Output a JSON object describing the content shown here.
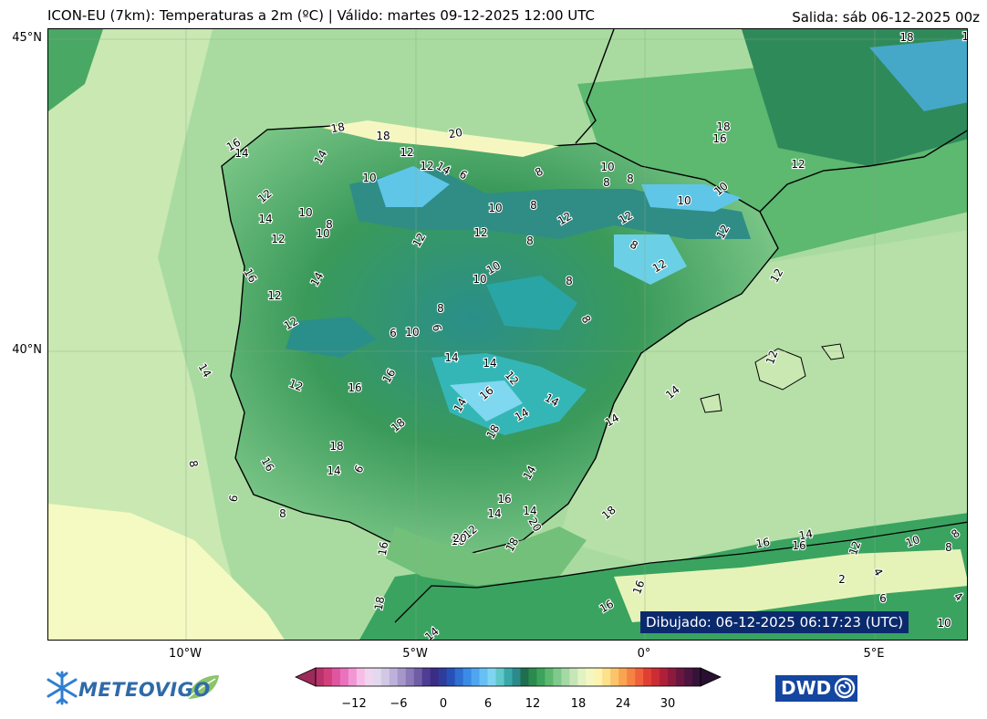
{
  "header": {
    "title": "ICON-EU (7km): Temperaturas a 2m (ºC) | Válido: martes 09-12-2025 12:00 UTC",
    "run": "Salida: sáb 06-12-2025 00z"
  },
  "map": {
    "latitude_labels": [
      "45°N",
      "40°N"
    ],
    "longitude_labels": [
      "10°W",
      "5°W",
      "0°",
      "5°E"
    ],
    "contour_labels": [
      "18",
      "18",
      "20",
      "16",
      "14",
      "14",
      "12",
      "14",
      "10",
      "16",
      "12",
      "12",
      "14",
      "14",
      "12",
      "16",
      "16",
      "18",
      "18",
      "16",
      "14",
      "6",
      "8",
      "6",
      "8",
      "10",
      "12",
      "12",
      "14",
      "6",
      "8",
      "10",
      "8",
      "8",
      "10",
      "10",
      "10",
      "8",
      "12",
      "12",
      "12",
      "10",
      "8",
      "12",
      "8",
      "12",
      "12",
      "8",
      "12",
      "10",
      "10",
      "8",
      "8",
      "8",
      "6",
      "10",
      "6",
      "14",
      "14",
      "12",
      "14",
      "16",
      "14",
      "14",
      "18",
      "14",
      "16",
      "14",
      "14",
      "12",
      "16",
      "18",
      "16",
      "20",
      "20",
      "18",
      "16",
      "16",
      "18",
      "14",
      "14",
      "14",
      "12",
      "12",
      "14",
      "16",
      "16",
      "14",
      "12",
      "10",
      "8",
      "8",
      "2",
      "4",
      "6",
      "4",
      "10",
      "18",
      "18",
      "16",
      "12"
    ],
    "stamp": "Dibujado: 06-12-2025 06:17:23 (UTC)"
  },
  "colorbar": {
    "ticks": [
      "−12",
      "−6",
      "0",
      "6",
      "12",
      "18",
      "24",
      "30"
    ],
    "colors": [
      "#b8336a",
      "#d2407c",
      "#e055a0",
      "#ea72bd",
      "#f296d4",
      "#f7bde6",
      "#efd6ee",
      "#e3d9ee",
      "#d2c8e6",
      "#bdb0da",
      "#a696c9",
      "#8b7ab8",
      "#6f5ea6",
      "#4e3d92",
      "#3b2c86",
      "#2c3d9c",
      "#2851b8",
      "#2f6ed2",
      "#3b8be6",
      "#4ea6f0",
      "#66c0f5",
      "#7fd4f2",
      "#60c8c8",
      "#3aa8a8",
      "#2b8a8a",
      "#1f6e4e",
      "#2b8a4c",
      "#3ca35c",
      "#5cb86e",
      "#7fc98a",
      "#a4d8a4",
      "#c6e6b8",
      "#e2f2c2",
      "#f3f8c2",
      "#fdf2b0",
      "#fde08a",
      "#fbc46a",
      "#f9a450",
      "#f68244",
      "#f0603c",
      "#e04034",
      "#cc2c34",
      "#b01f38",
      "#8c1a3c",
      "#6a1640",
      "#4e1440",
      "#361238"
    ],
    "min_color": "#9c2a5a",
    "max_color": "#2a1030"
  },
  "logos": {
    "left_text": "METEOVIGO",
    "right_text": "DWD"
  }
}
